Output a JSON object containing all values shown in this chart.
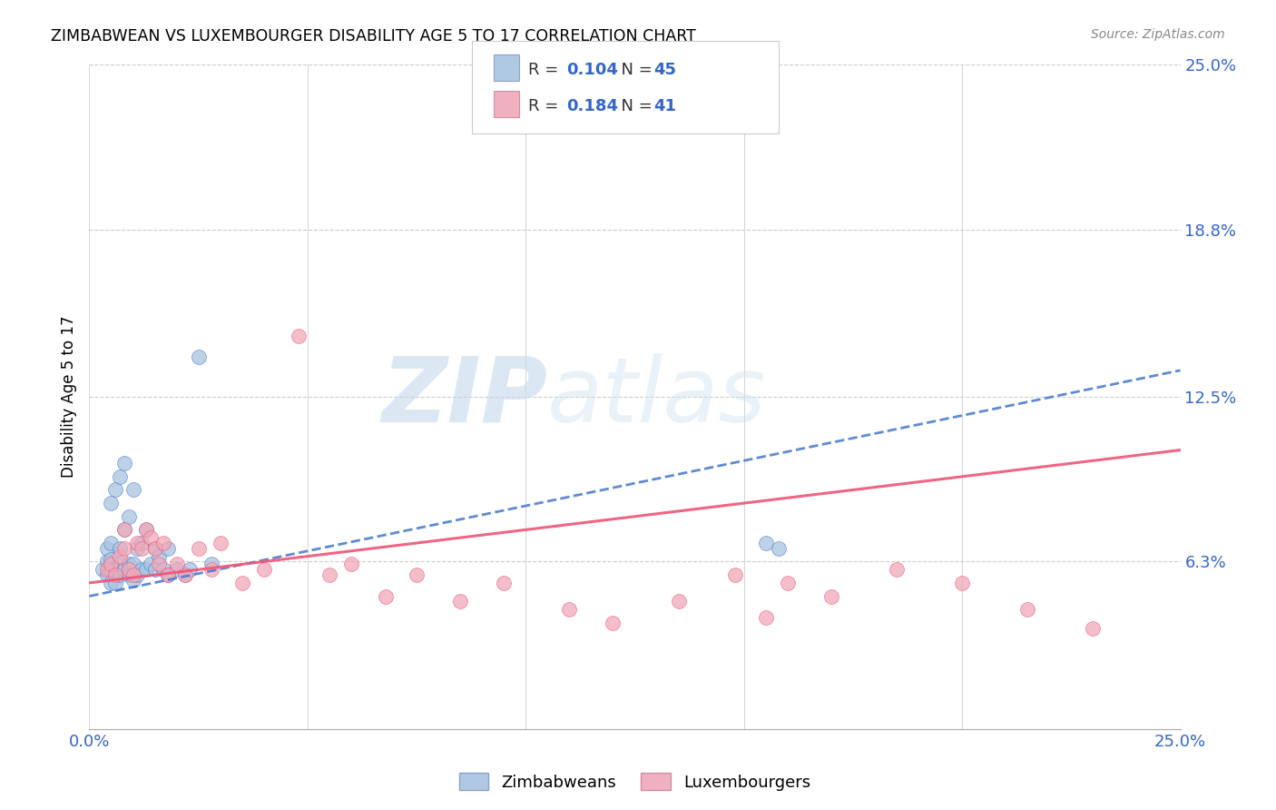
{
  "title": "ZIMBABWEAN VS LUXEMBOURGER DISABILITY AGE 5 TO 17 CORRELATION CHART",
  "source": "Source: ZipAtlas.com",
  "ylabel": "Disability Age 5 to 17",
  "xlim": [
    0.0,
    0.25
  ],
  "ylim": [
    0.0,
    0.25
  ],
  "blue_R": "0.104",
  "blue_N": "45",
  "pink_R": "0.184",
  "pink_N": "41",
  "legend_label_blue": "Zimbabweans",
  "legend_label_pink": "Luxembourgers",
  "blue_color": "#a8c4e0",
  "pink_color": "#f0a8b8",
  "blue_line_color": "#4477cc",
  "pink_line_color": "#ee5577",
  "watermark_zip": "ZIP",
  "watermark_atlas": "atlas",
  "background_color": "#ffffff",
  "grid_color": "#cccccc",
  "zimbabwe_x": [
    0.003,
    0.004,
    0.004,
    0.004,
    0.005,
    0.005,
    0.005,
    0.005,
    0.005,
    0.006,
    0.006,
    0.006,
    0.007,
    0.007,
    0.007,
    0.007,
    0.008,
    0.008,
    0.008,
    0.009,
    0.009,
    0.009,
    0.01,
    0.01,
    0.01,
    0.011,
    0.011,
    0.012,
    0.012,
    0.013,
    0.013,
    0.014,
    0.015,
    0.015,
    0.016,
    0.017,
    0.018,
    0.018,
    0.02,
    0.022,
    0.023,
    0.025,
    0.028,
    0.155,
    0.158
  ],
  "zimbabwe_y": [
    0.06,
    0.058,
    0.063,
    0.068,
    0.055,
    0.06,
    0.064,
    0.07,
    0.085,
    0.055,
    0.06,
    0.09,
    0.058,
    0.062,
    0.068,
    0.095,
    0.06,
    0.075,
    0.1,
    0.058,
    0.062,
    0.08,
    0.056,
    0.062,
    0.09,
    0.058,
    0.068,
    0.06,
    0.07,
    0.06,
    0.075,
    0.062,
    0.06,
    0.068,
    0.065,
    0.06,
    0.058,
    0.068,
    0.06,
    0.058,
    0.06,
    0.14,
    0.062,
    0.07,
    0.068
  ],
  "luxembourg_x": [
    0.004,
    0.005,
    0.006,
    0.007,
    0.008,
    0.008,
    0.009,
    0.01,
    0.011,
    0.012,
    0.013,
    0.014,
    0.015,
    0.016,
    0.017,
    0.018,
    0.02,
    0.022,
    0.025,
    0.028,
    0.03,
    0.035,
    0.04,
    0.048,
    0.055,
    0.06,
    0.068,
    0.075,
    0.085,
    0.095,
    0.11,
    0.12,
    0.135,
    0.148,
    0.155,
    0.16,
    0.17,
    0.185,
    0.2,
    0.215,
    0.23
  ],
  "luxembourg_y": [
    0.06,
    0.062,
    0.058,
    0.065,
    0.068,
    0.075,
    0.06,
    0.058,
    0.07,
    0.068,
    0.075,
    0.072,
    0.068,
    0.062,
    0.07,
    0.058,
    0.062,
    0.058,
    0.068,
    0.06,
    0.07,
    0.055,
    0.06,
    0.148,
    0.058,
    0.062,
    0.05,
    0.058,
    0.048,
    0.055,
    0.045,
    0.04,
    0.048,
    0.058,
    0.042,
    0.055,
    0.05,
    0.06,
    0.055,
    0.045,
    0.038
  ],
  "blue_trend_x": [
    0.0,
    0.25
  ],
  "blue_trend_y": [
    0.05,
    0.135
  ],
  "pink_trend_x": [
    0.0,
    0.25
  ],
  "pink_trend_y": [
    0.055,
    0.105
  ]
}
